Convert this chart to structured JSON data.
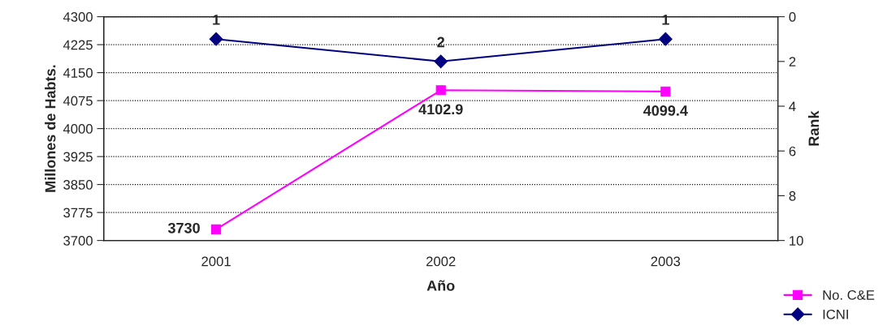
{
  "chart_data": {
    "type": "line",
    "xlabel": "Año",
    "ylabel": "Millones de Habts.",
    "y2label": "Rank",
    "categories": [
      "2001",
      "2002",
      "2003"
    ],
    "series": [
      {
        "name": "No. C&E",
        "color": "#ff00ff",
        "marker": "square",
        "values": [
          3730,
          4102.9,
          4099.4
        ]
      },
      {
        "name": "ICNI",
        "color": "#000080",
        "marker": "diamond",
        "axis": "y2",
        "values": [
          1,
          2,
          1
        ]
      }
    ],
    "ylim": [
      3700,
      4300
    ],
    "yticks": [
      3700,
      3775,
      3850,
      3925,
      4000,
      4075,
      4150,
      4225,
      4300
    ],
    "y2lim": [
      10,
      0
    ],
    "y2ticks": [
      0,
      2,
      4,
      6,
      8,
      10
    ],
    "grid": "y",
    "legend": "bottom right",
    "data_labels": true,
    "line_style": "solid"
  }
}
